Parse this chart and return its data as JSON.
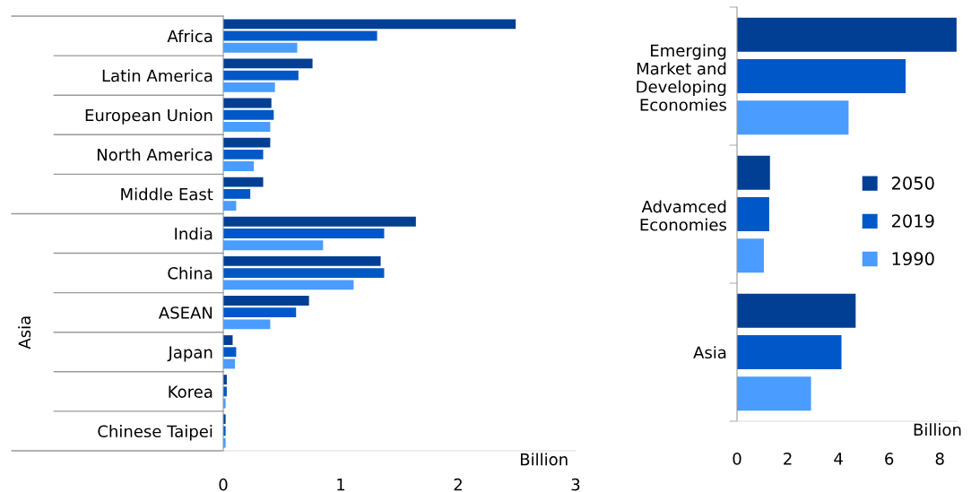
{
  "chart_data": [
    {
      "type": "bar",
      "orientation": "horizontal",
      "xlabel": "Billion",
      "categories": [
        "Africa",
        "Latin America",
        "European Union",
        "North America",
        "Middle East",
        "India",
        "China",
        "ASEAN",
        "Japan",
        "Korea",
        "Chinese Taipei"
      ],
      "series": [
        {
          "color": "#003f93",
          "values": [
            2.49,
            0.76,
            0.41,
            0.4,
            0.34,
            1.64,
            1.34,
            0.73,
            0.08,
            0.03,
            0.02
          ]
        },
        {
          "color": "#0058c8",
          "values": [
            1.31,
            0.64,
            0.43,
            0.34,
            0.23,
            1.37,
            1.37,
            0.62,
            0.11,
            0.03,
            0.02
          ]
        },
        {
          "color": "#4a9cff",
          "values": [
            0.63,
            0.44,
            0.4,
            0.26,
            0.11,
            0.85,
            1.11,
            0.4,
            0.1,
            0.02,
            0.02
          ]
        }
      ],
      "xlim": [
        0,
        3
      ],
      "xticks": [
        0,
        1,
        2,
        3
      ],
      "annotations": [
        "Asia"
      ],
      "grid": false
    },
    {
      "type": "bar",
      "orientation": "horizontal",
      "xlabel": "Billion",
      "categories": [
        "Emerging\nMarket and\nDeveloping\nEconomies",
        "Advamced\nEconomies",
        "Asia"
      ],
      "series": [
        {
          "name": "2050",
          "color": "#003f93",
          "values": [
            8.66,
            1.3,
            4.68
          ]
        },
        {
          "name": "2019",
          "color": "#0058c8",
          "values": [
            6.65,
            1.27,
            4.12
          ]
        },
        {
          "name": "1990",
          "color": "#4a9cff",
          "values": [
            4.4,
            1.06,
            2.92
          ]
        }
      ],
      "xlim": [
        0,
        8.7
      ],
      "xticks": [
        0,
        2,
        4,
        6,
        8
      ],
      "grid": false,
      "legend": "center right"
    }
  ]
}
